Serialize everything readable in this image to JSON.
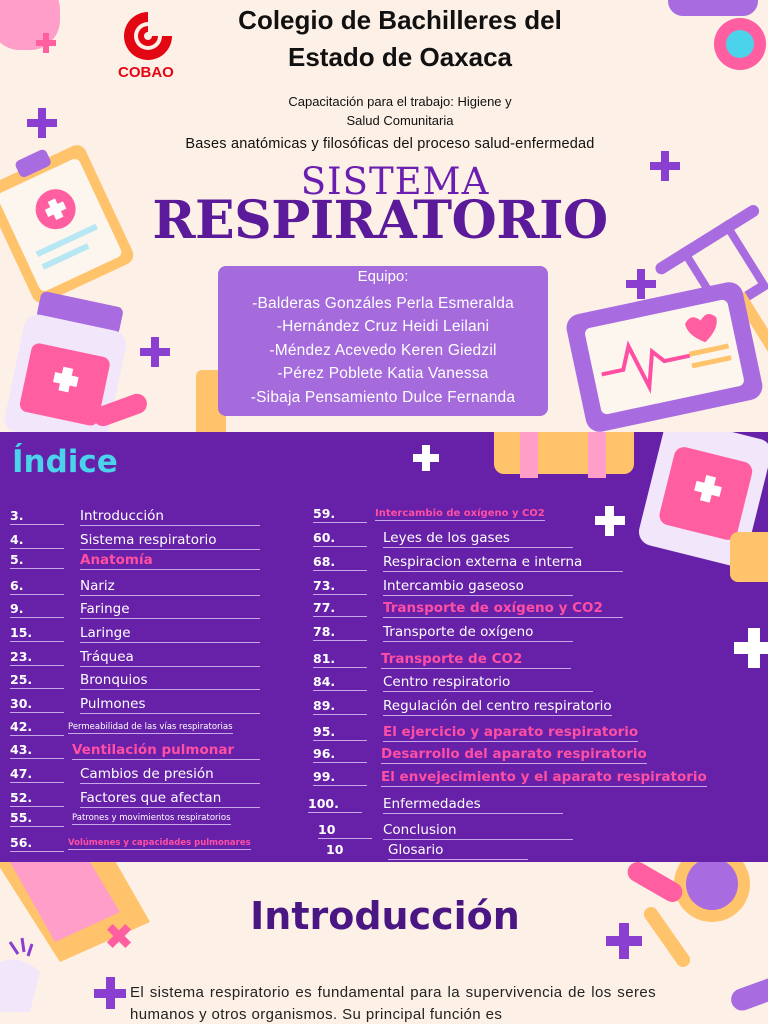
{
  "cover": {
    "logo_text": "COBAO",
    "school_line1": "Colegio de Bachilleres del",
    "school_line2": "Estado de Oaxaca",
    "training_line1": "Capacitación para el trabajo: Higiene y",
    "training_line2": "Salud Comunitaria",
    "subject": "Bases anatómicas y filosóficas del proceso salud-enfermedad",
    "title_line1": "SISTEMA",
    "title_line2": "RESPIRATORIO",
    "team_label": "Equipo:",
    "team_members": [
      "-Balderas Gonzáles Perla Esmeralda",
      "-Hernández Cruz Heidi Leilani",
      "-Méndez Acevedo Keren Giedzil",
      "-Pérez Poblete Katia Vanessa",
      "-Sibaja Pensamiento Dulce Fernanda"
    ],
    "icons": [
      "medical-clipboard-icon",
      "pill-bottle-icon",
      "capsule-icon",
      "crutch-icon",
      "heart-monitor-icon",
      "plus-icon"
    ]
  },
  "index": {
    "title": "Índice",
    "left_items": [
      {
        "num": "3.",
        "label": "Introducción",
        "highlight": false
      },
      {
        "num": "4.",
        "label": "Sistema respiratorio",
        "highlight": false
      },
      {
        "num": "5.",
        "label": "Anatomía",
        "highlight": true
      },
      {
        "num": "6.",
        "label": "Nariz",
        "highlight": false
      },
      {
        "num": "9.",
        "label": "Faringe",
        "highlight": false
      },
      {
        "num": "15.",
        "label": "Laringe",
        "highlight": false
      },
      {
        "num": "23.",
        "label": "Tráquea",
        "highlight": false
      },
      {
        "num": "25.",
        "label": "Bronquios",
        "highlight": false
      },
      {
        "num": "30.",
        "label": "Pulmones",
        "highlight": false
      },
      {
        "num": "42.",
        "label": "Permeabilidad de las vías respiratorias",
        "highlight": false
      },
      {
        "num": "43.",
        "label": "Ventilación pulmonar",
        "highlight": true
      },
      {
        "num": "47.",
        "label": "Cambios de presión",
        "highlight": false
      },
      {
        "num": "52.",
        "label": "Factores que afectan",
        "highlight": false
      },
      {
        "num": "55.",
        "label": "Patrones y movimientos respiratorios",
        "highlight": false
      },
      {
        "num": "56.",
        "label": "Volúmenes y capacidades pulmonares",
        "highlight": true
      }
    ],
    "right_items": [
      {
        "num": "59.",
        "label": "Intercambio de oxígeno y CO2",
        "highlight": true
      },
      {
        "num": "60.",
        "label": "Leyes de los gases",
        "highlight": false
      },
      {
        "num": "68.",
        "label": "Respiracion externa e interna",
        "highlight": false
      },
      {
        "num": "73.",
        "label": "Intercambio gaseoso",
        "highlight": false
      },
      {
        "num": "77.",
        "label": "Transporte de oxígeno y CO2",
        "highlight": true
      },
      {
        "num": "78.",
        "label": "Transporte de oxígeno",
        "highlight": false
      },
      {
        "num": "81.",
        "label": "Transporte de CO2",
        "highlight": true
      },
      {
        "num": "84.",
        "label": "Centro respiratorio",
        "highlight": false
      },
      {
        "num": "89.",
        "label": "Regulación del centro respiratorio",
        "highlight": false
      },
      {
        "num": "95.",
        "label": "El ejercicio y aparato respiratorio",
        "highlight": true
      },
      {
        "num": "96.",
        "label": "Desarrollo del aparato respiratorio",
        "highlight": true
      },
      {
        "num": "99.",
        "label": "El envejecimiento y el aparato respiratorio",
        "highlight": true
      },
      {
        "num": "100.",
        "label": "Enfermedades",
        "highlight": false
      },
      {
        "num": "10",
        "label": "Conclusion",
        "highlight": false
      },
      {
        "num": "10",
        "label": "Glosario",
        "highlight": false
      }
    ]
  },
  "intro": {
    "title": "Introducción",
    "text": "El sistema respiratorio es fundamental para la supervivencia de los seres humanos y otros organismos. Su principal función es"
  },
  "colors": {
    "cream": "#fdf0e6",
    "purple_title": "#5b1a99",
    "index_bg": "#6621a8",
    "index_title": "#4ad3ea",
    "highlight_pink": "#ff4fa3",
    "team_box": "#a56bdd",
    "logo_red": "#e30613"
  }
}
